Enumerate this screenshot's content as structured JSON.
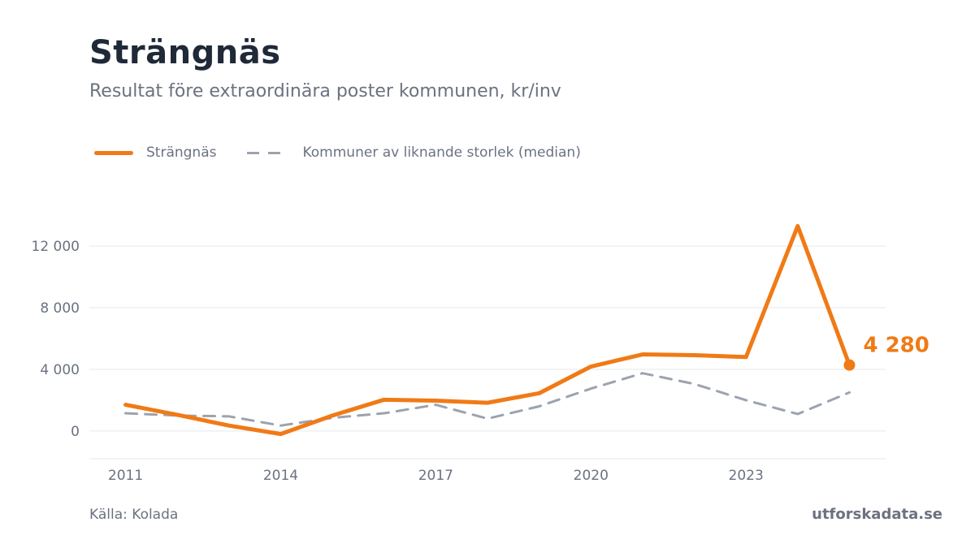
{
  "title": "Strängnäs",
  "subtitle": "Resultat före extraordinära poster kommunen, kr/inv",
  "source": "Källa: Kolada",
  "brand": "utforskadata.se",
  "colors": {
    "primary": "#f07a16",
    "median": "#9ca3af",
    "grid": "#e5e7eb",
    "text": "#6b7280",
    "title": "#1f2937"
  },
  "chart_data": {
    "type": "line",
    "x": [
      2011,
      2012,
      2013,
      2014,
      2015,
      2016,
      2017,
      2018,
      2019,
      2020,
      2021,
      2022,
      2023,
      2024,
      2025
    ],
    "series": [
      {
        "name": "Strängnäs",
        "style": "solid",
        "color": "#f07a16",
        "values": [
          1700,
          1050,
          350,
          -200,
          1000,
          2030,
          1970,
          1830,
          2450,
          4180,
          4970,
          4920,
          4800,
          13300,
          4280
        ]
      },
      {
        "name": "Kommuner av liknande storlek (median)",
        "style": "dashed",
        "color": "#9ca3af",
        "values": [
          1150,
          1000,
          950,
          350,
          850,
          1150,
          1700,
          800,
          1600,
          2750,
          3750,
          3050,
          2000,
          1100,
          2500
        ]
      }
    ],
    "xticks": [
      2011,
      2014,
      2017,
      2020,
      2023
    ],
    "xtick_labels": [
      "2011",
      "2014",
      "2017",
      "2020",
      "2023"
    ],
    "yticks": [
      0,
      4000,
      8000,
      12000
    ],
    "ytick_labels": [
      "0",
      "4 000",
      "8 000",
      "12 000"
    ],
    "xlim": [
      2010.3,
      2025.7
    ],
    "ylim": [
      -1800,
      14800
    ],
    "grid": true,
    "legend": "top-left",
    "end_label": "4 280"
  }
}
